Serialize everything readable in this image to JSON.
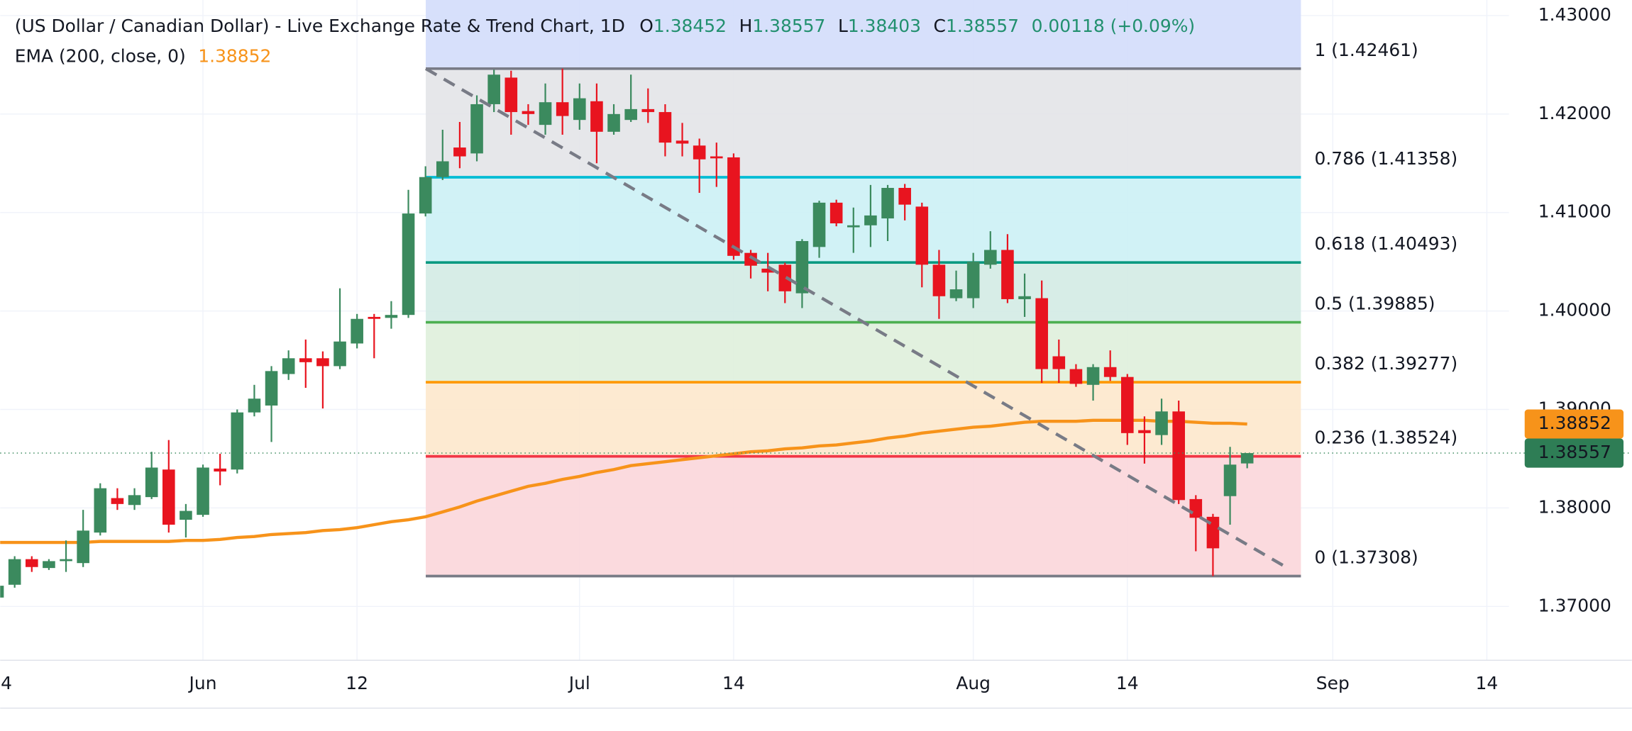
{
  "chart_data": {
    "type": "candlestick",
    "title": "(US Dollar / Canadian Dollar) - Live Exchange Rate & Trend Chart, 1D",
    "ohlc_keys": [
      "O",
      "H",
      "L",
      "C"
    ],
    "change": "0.00118 (+0.09%)",
    "categories": [
      "4",
      null,
      null,
      null,
      null,
      null,
      null,
      null,
      null,
      null,
      null,
      null,
      "Jun",
      null,
      null,
      null,
      null,
      null,
      null,
      null,
      null,
      "12",
      null,
      null,
      null,
      null,
      null,
      null,
      null,
      null,
      null,
      null,
      null,
      null,
      "Jul",
      null,
      null,
      null,
      null,
      null,
      null,
      null,
      null,
      "14",
      null,
      null,
      null,
      null,
      null,
      null,
      null,
      null,
      null,
      null,
      null,
      null,
      null,
      "Aug",
      null,
      null,
      null,
      null,
      null,
      null,
      null,
      null,
      "14",
      null,
      null,
      null,
      null,
      null,
      null,
      null,
      null,
      null,
      null,
      null,
      "Sep",
      null,
      null,
      null,
      null,
      null,
      null,
      null,
      null,
      "14",
      null
    ],
    "open": [
      1.3709,
      1.3722,
      1.3748,
      1.3739,
      1.3746,
      1.3744,
      1.3775,
      1.381,
      1.3803,
      1.3811,
      1.3839,
      1.3788,
      1.3793,
      1.384,
      1.3839,
      1.3897,
      1.3904,
      1.3936,
      1.3952,
      1.3952,
      1.3944,
      1.3967,
      1.3994,
      1.3993,
      1.3996,
      1.4099,
      1.4136,
      1.4166,
      1.416,
      1.421,
      1.4237,
      1.4203,
      1.4189,
      1.4212,
      1.4194,
      1.4213,
      1.4182,
      1.4194,
      1.4205,
      1.4202,
      1.4173,
      1.4168,
      1.4157,
      1.4156,
      1.4059,
      1.4043,
      1.4047,
      1.4018,
      1.4065,
      1.411,
      1.4085,
      1.4087,
      1.4094,
      1.4125,
      1.4106,
      1.4047,
      1.4013,
      1.4013,
      1.4047,
      1.4062,
      1.4012,
      1.4013,
      1.3954,
      1.3941,
      1.3925,
      1.3943,
      1.3933,
      1.3879,
      1.3874,
      1.3898,
      1.3809,
      1.3791,
      1.3812,
      1.38452,
      null,
      null,
      null,
      null,
      null,
      null,
      null,
      null,
      null,
      null,
      null,
      null,
      null,
      null,
      null
    ],
    "high": [
      1.3725,
      1.3751,
      1.3751,
      1.3748,
      1.3767,
      1.3798,
      1.3825,
      1.382,
      1.382,
      1.3857,
      1.3869,
      1.3804,
      1.3844,
      1.3855,
      1.39,
      1.3925,
      1.3944,
      1.396,
      1.3971,
      1.3959,
      1.4023,
      1.3997,
      1.3997,
      1.401,
      1.4123,
      1.4147,
      1.4184,
      1.4192,
      1.4219,
      1.4245,
      1.4244,
      1.421,
      1.4231,
      1.42461,
      1.4231,
      1.4231,
      1.421,
      1.424,
      1.4226,
      1.421,
      1.4191,
      1.4175,
      1.4171,
      1.416,
      1.4062,
      1.4059,
      1.4049,
      1.4073,
      1.4112,
      1.4113,
      1.4105,
      1.4128,
      1.4128,
      1.4129,
      1.411,
      1.4062,
      1.4041,
      1.4059,
      1.4081,
      1.4078,
      1.4038,
      1.4031,
      1.3971,
      1.3946,
      1.3946,
      1.396,
      1.3936,
      1.3893,
      1.3911,
      1.3909,
      1.3813,
      1.3794,
      1.3862,
      1.38557,
      null,
      null,
      null,
      null,
      null,
      null,
      null,
      null,
      null,
      null,
      null,
      null,
      null,
      null,
      null
    ],
    "low": [
      1.3705,
      1.3719,
      1.3735,
      1.3737,
      1.3735,
      1.374,
      1.3772,
      1.3798,
      1.3798,
      1.3809,
      1.3775,
      1.377,
      1.3791,
      1.3823,
      1.3835,
      1.3893,
      1.3867,
      1.393,
      1.3922,
      1.3901,
      1.3941,
      1.3962,
      1.3952,
      1.3982,
      1.3993,
      1.4096,
      1.4133,
      1.4145,
      1.4152,
      1.4202,
      1.4179,
      1.4189,
      1.4179,
      1.4179,
      1.4184,
      1.415,
      1.4179,
      1.4192,
      1.4191,
      1.4157,
      1.4157,
      1.412,
      1.4126,
      1.4052,
      1.4033,
      1.402,
      1.4008,
      1.4003,
      1.4054,
      1.4086,
      1.4059,
      1.4065,
      1.4071,
      1.4092,
      1.4024,
      1.3992,
      1.401,
      1.4003,
      1.4043,
      1.4008,
      1.3994,
      1.3927,
      1.3927,
      1.3923,
      1.3909,
      1.3929,
      1.3864,
      1.3845,
      1.3864,
      1.3804,
      1.3756,
      1.37308,
      1.3783,
      1.38403,
      null,
      null,
      null,
      null,
      null,
      null,
      null,
      null,
      null,
      null,
      null,
      null,
      null,
      null,
      null
    ],
    "close": [
      1.3721,
      1.3748,
      1.374,
      1.3746,
      1.3748,
      1.3777,
      1.382,
      1.3804,
      1.3813,
      1.3841,
      1.3783,
      1.3797,
      1.3841,
      1.3837,
      1.3897,
      1.3911,
      1.3939,
      1.3952,
      1.3948,
      1.3944,
      1.3969,
      1.3992,
      1.3992,
      1.3996,
      1.4099,
      1.4136,
      1.4152,
      1.4157,
      1.421,
      1.424,
      1.4202,
      1.42,
      1.4212,
      1.4198,
      1.4216,
      1.4182,
      1.42,
      1.4205,
      1.4202,
      1.4171,
      1.417,
      1.4154,
      1.4155,
      1.4056,
      1.4046,
      1.4039,
      1.402,
      1.4071,
      1.411,
      1.4089,
      1.4087,
      1.4097,
      1.4125,
      1.4108,
      1.4047,
      1.4015,
      1.4022,
      1.405,
      1.4062,
      1.4012,
      1.4015,
      1.3941,
      1.3941,
      1.3926,
      1.3943,
      1.3933,
      1.3876,
      1.3876,
      1.3898,
      1.3808,
      1.379,
      1.3759,
      1.3844,
      1.38557,
      null,
      null,
      null,
      null,
      null,
      null,
      null,
      null,
      null,
      null,
      null,
      null,
      null,
      null,
      null
    ],
    "up_color": "#3b8a5e",
    "down_color": "#e8141f",
    "ema": {
      "name": "EMA (200, close, 0)",
      "color": "#f7931a",
      "values": [
        1.3765,
        1.3765,
        1.3765,
        1.3765,
        1.3765,
        1.3765,
        1.3766,
        1.3766,
        1.3766,
        1.3766,
        1.3766,
        1.3767,
        1.3767,
        1.3768,
        1.377,
        1.3771,
        1.3773,
        1.3774,
        1.3775,
        1.3777,
        1.3778,
        1.378,
        1.3783,
        1.3786,
        1.3788,
        1.3791,
        1.3796,
        1.3801,
        1.3807,
        1.3812,
        1.3817,
        1.3822,
        1.3825,
        1.3829,
        1.3832,
        1.3836,
        1.3839,
        1.3843,
        1.3845,
        1.3847,
        1.3849,
        1.3851,
        1.3853,
        1.3855,
        1.3857,
        1.3858,
        1.386,
        1.3861,
        1.3863,
        1.3864,
        1.3866,
        1.3868,
        1.3871,
        1.3873,
        1.3876,
        1.3878,
        1.388,
        1.3882,
        1.3883,
        1.3885,
        1.3887,
        1.3888,
        1.3888,
        1.3888,
        1.3889,
        1.3889,
        1.3889,
        1.3889,
        1.3888,
        1.3888,
        1.3887,
        1.3886,
        1.3886,
        1.38852,
        null,
        null,
        null,
        null,
        null,
        null,
        null,
        null,
        null,
        null,
        null,
        null,
        null,
        null,
        null
      ]
    },
    "fib_top_color": "#d3ddfb",
    "fib_levels": [
      {
        "label": "1 (1.42461)",
        "value": 1.42461,
        "color": "#787b86",
        "fill": "#e3e4e8"
      },
      {
        "label": "0.786 (1.41358)",
        "value": 1.41358,
        "color": "#00bcd4",
        "fill": "#ccf1f5"
      },
      {
        "label": "0.618 (1.40493)",
        "value": 1.40493,
        "color": "#089981",
        "fill": "#d3ebe4"
      },
      {
        "label": "0.5 (1.39885)",
        "value": 1.39885,
        "color": "#4caf50",
        "fill": "#dff0dc"
      },
      {
        "label": "0.382 (1.39277)",
        "value": 1.39277,
        "color": "#ff9800",
        "fill": "#fde8cc"
      },
      {
        "label": "0.236 (1.38524)",
        "value": 1.38524,
        "color": "#f23645",
        "fill": "#fbd6da"
      },
      {
        "label": "0 (1.37308)",
        "value": 1.37308,
        "color": "#787b86"
      }
    ],
    "ylim": [
      1.36453,
      1.43158
    ],
    "yticks": [
      {
        "value": 1.43,
        "label": "1.43000"
      },
      {
        "value": 1.42,
        "label": "1.42000"
      },
      {
        "value": 1.41,
        "label": "1.41000"
      },
      {
        "value": 1.4,
        "label": "1.40000"
      },
      {
        "value": 1.39,
        "label": "1.39000"
      },
      {
        "value": 1.38,
        "label": "1.38000"
      },
      {
        "value": 1.37,
        "label": "1.37000"
      }
    ],
    "grid": true
  }
}
